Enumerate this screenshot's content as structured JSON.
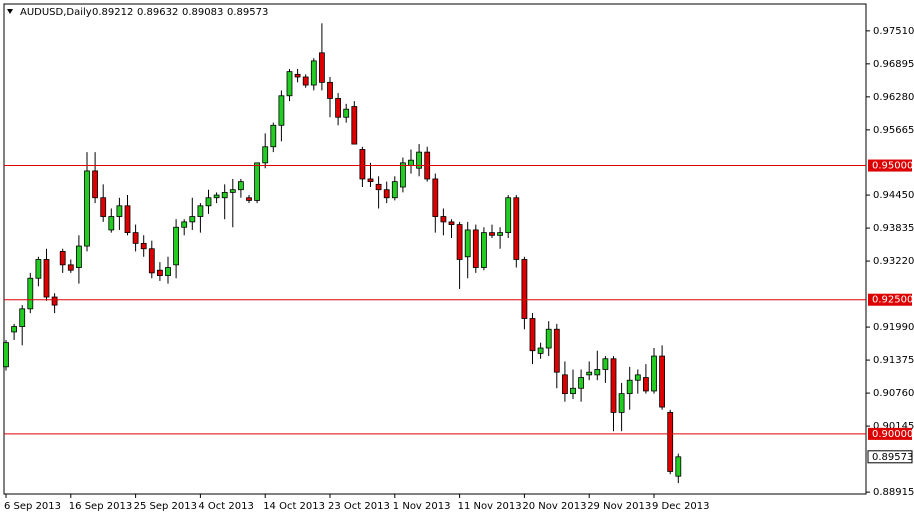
{
  "chart_data": {
    "type": "candlestick",
    "title": "AUDUSD,Daily",
    "categories": [
      "6 Sep 2013",
      null,
      null,
      null,
      null,
      null,
      null,
      null,
      "16 Sep 2013",
      null,
      null,
      null,
      null,
      null,
      null,
      null,
      "25 Sep 2013",
      null,
      null,
      null,
      null,
      null,
      null,
      null,
      "4 Oct 2013",
      null,
      null,
      null,
      null,
      null,
      null,
      null,
      "14 Oct 2013",
      null,
      null,
      null,
      null,
      null,
      null,
      null,
      "23 Oct 2013",
      null,
      null,
      null,
      null,
      null,
      null,
      null,
      "1 Nov 2013",
      null,
      null,
      null,
      null,
      null,
      null,
      null,
      "11 Nov 2013",
      null,
      null,
      null,
      null,
      null,
      null,
      null,
      "20 Nov 2013",
      null,
      null,
      null,
      null,
      null,
      null,
      null,
      "29 Nov 2013",
      null,
      null,
      null,
      null,
      null,
      null,
      null,
      "9 Dec 2013",
      null,
      null,
      null
    ],
    "open": [
      0.9125,
      0.919,
      0.92,
      0.9233,
      0.929,
      0.9325,
      0.9255,
      0.934,
      0.9315,
      0.931,
      0.935,
      0.949,
      0.944,
      0.938,
      0.9405,
      0.9425,
      0.9375,
      0.9355,
      0.9345,
      0.9305,
      0.9295,
      0.9315,
      0.9385,
      0.9395,
      0.9405,
      0.9425,
      0.944,
      0.944,
      0.945,
      0.9455,
      0.944,
      0.9435,
      0.9505,
      0.9535,
      0.9575,
      0.963,
      0.967,
      0.9665,
      0.965,
      0.971,
      0.9655,
      0.9625,
      0.959,
      0.961,
      0.953,
      0.9475,
      0.9465,
      0.9455,
      0.944,
      0.946,
      0.95,
      0.9495,
      0.9525,
      0.9475,
      0.9405,
      0.9395,
      0.939,
      0.933,
      0.938,
      0.931,
      0.9375,
      0.937,
      0.9375,
      0.944,
      0.9325,
      0.9215,
      0.915,
      0.916,
      0.9195,
      0.911,
      0.9075,
      0.9085,
      0.911,
      0.911,
      0.912,
      0.914,
      0.904,
      0.9075,
      0.91,
      0.9105,
      0.908,
      0.9145,
      0.904,
      0.89212
    ],
    "high": [
      0.9175,
      0.9205,
      0.924,
      0.93,
      0.933,
      0.9345,
      0.9262,
      0.9345,
      0.9325,
      0.937,
      0.9525,
      0.9525,
      0.9465,
      0.942,
      0.944,
      0.9445,
      0.939,
      0.937,
      0.936,
      0.932,
      0.933,
      0.94,
      0.94,
      0.944,
      0.943,
      0.9455,
      0.945,
      0.9465,
      0.9475,
      0.9475,
      0.9445,
      0.9505,
      0.956,
      0.958,
      0.964,
      0.968,
      0.968,
      0.967,
      0.97,
      0.9765,
      0.9665,
      0.9635,
      0.9615,
      0.962,
      0.9535,
      0.9505,
      0.948,
      0.947,
      0.948,
      0.9515,
      0.953,
      0.954,
      0.9535,
      0.9485,
      0.942,
      0.94,
      0.9395,
      0.9395,
      0.939,
      0.9385,
      0.939,
      0.9385,
      0.9445,
      0.9445,
      0.933,
      0.9225,
      0.917,
      0.921,
      0.9205,
      0.9135,
      0.912,
      0.912,
      0.9135,
      0.9155,
      0.9145,
      0.9145,
      0.9095,
      0.9125,
      0.912,
      0.913,
      0.916,
      0.9165,
      0.9045,
      0.89632
    ],
    "low": [
      0.9118,
      0.9175,
      0.9165,
      0.9225,
      0.9275,
      0.9248,
      0.9225,
      0.93,
      0.93,
      0.928,
      0.934,
      0.943,
      0.9395,
      0.9375,
      0.938,
      0.937,
      0.934,
      0.933,
      0.929,
      0.9285,
      0.928,
      0.929,
      0.937,
      0.938,
      0.9375,
      0.941,
      0.943,
      0.94,
      0.9385,
      0.944,
      0.943,
      0.943,
      0.9495,
      0.9525,
      0.9545,
      0.962,
      0.9655,
      0.9645,
      0.964,
      0.964,
      0.959,
      0.9575,
      0.958,
      0.954,
      0.946,
      0.946,
      0.942,
      0.943,
      0.9435,
      0.945,
      0.9485,
      0.948,
      0.947,
      0.9375,
      0.937,
      0.9365,
      0.927,
      0.929,
      0.93,
      0.9305,
      0.9365,
      0.9345,
      0.9365,
      0.931,
      0.9195,
      0.913,
      0.914,
      0.9145,
      0.9085,
      0.906,
      0.9065,
      0.906,
      0.91,
      0.91,
      0.9095,
      0.9005,
      0.9005,
      0.9045,
      0.9075,
      0.9075,
      0.9075,
      0.9045,
      0.8925,
      0.89083
    ],
    "close": [
      0.917,
      0.92,
      0.9233,
      0.929,
      0.9325,
      0.9255,
      0.924,
      0.9315,
      0.9305,
      0.935,
      0.949,
      0.944,
      0.9405,
      0.9405,
      0.9425,
      0.9375,
      0.9355,
      0.9345,
      0.93,
      0.9295,
      0.931,
      0.9385,
      0.9395,
      0.9405,
      0.9425,
      0.944,
      0.9445,
      0.945,
      0.9455,
      0.947,
      0.9435,
      0.9505,
      0.9535,
      0.9575,
      0.963,
      0.9675,
      0.9665,
      0.965,
      0.9695,
      0.9655,
      0.9625,
      0.959,
      0.9605,
      0.954,
      0.9475,
      0.947,
      0.9455,
      0.944,
      0.947,
      0.9505,
      0.951,
      0.9525,
      0.9475,
      0.9405,
      0.9395,
      0.939,
      0.9325,
      0.938,
      0.931,
      0.9375,
      0.937,
      0.9375,
      0.944,
      0.9325,
      0.9215,
      0.9155,
      0.916,
      0.9195,
      0.9115,
      0.9075,
      0.9085,
      0.9105,
      0.9115,
      0.912,
      0.914,
      0.904,
      0.9075,
      0.91,
      0.911,
      0.908,
      0.9145,
      0.905,
      0.893,
      0.89573
    ],
    "up_color": "#22cc22",
    "down_color": "#dd0000",
    "wick_color": "#000000",
    "ylim": [
      0.8888,
      0.9801
    ],
    "yticks": [
      {
        "value": 0.9751,
        "label": "0.97510"
      },
      {
        "value": 0.96895,
        "label": "0.96895"
      },
      {
        "value": 0.9628,
        "label": "0.96280"
      },
      {
        "value": 0.95665,
        "label": "0.95665"
      },
      {
        "value": 0.9445,
        "label": "0.94450"
      },
      {
        "value": 0.93835,
        "label": "0.93835"
      },
      {
        "value": 0.9322,
        "label": "0.93220"
      },
      {
        "value": 0.9199,
        "label": "0.91990"
      },
      {
        "value": 0.91375,
        "label": "0.91375"
      },
      {
        "value": 0.9076,
        "label": "0.90760"
      },
      {
        "value": 0.90145,
        "label": "0.90145"
      },
      {
        "value": 0.88915,
        "label": "0.88915"
      }
    ],
    "levels": [
      {
        "value": 0.95,
        "label": "0.95000"
      },
      {
        "value": 0.925,
        "label": "0.92500"
      },
      {
        "value": 0.9,
        "label": "0.90000"
      }
    ],
    "level_color": "#dd0000"
  }
}
